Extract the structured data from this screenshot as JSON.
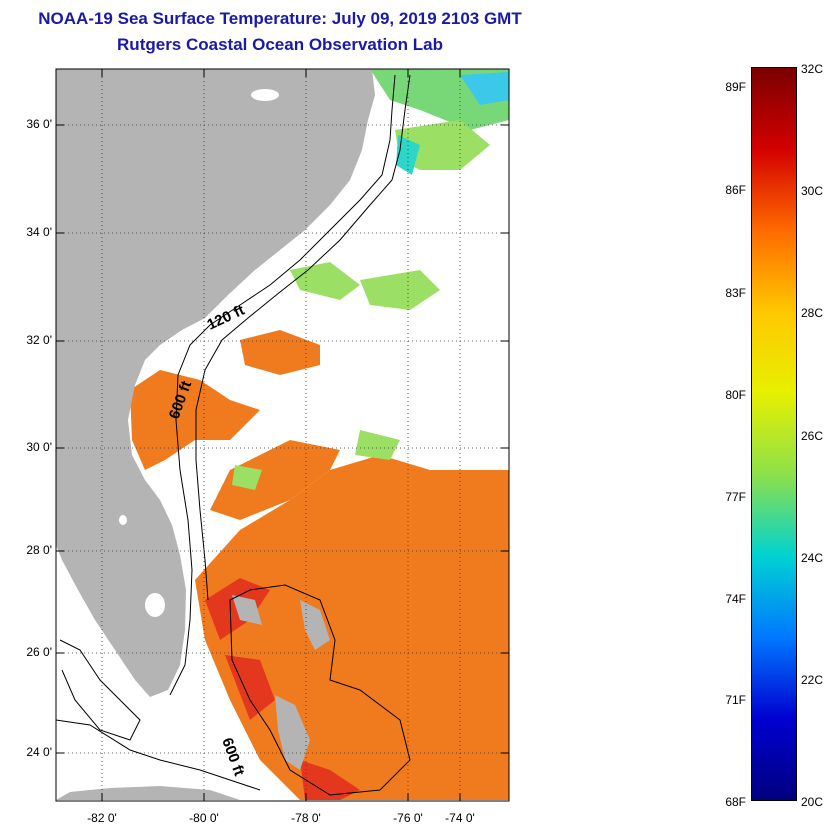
{
  "title": "NOAA-19 Sea Surface Temperature:  July 09, 2019 2103 GMT",
  "subtitle": "Rutgers Coastal Ocean Observation Lab",
  "lat_labels": [
    "36 0'",
    "34 0'",
    "32 0'",
    "30 0'",
    "28 0'",
    "26 0'",
    "24 0'"
  ],
  "lon_labels": [
    "-82 0'",
    "-80 0'",
    "-78 0'",
    "-76 0'",
    "-74 0'"
  ],
  "isobath_labels": [
    "120 ft",
    "600 ft",
    "600 ft"
  ],
  "colorbar": {
    "f_labels": [
      "89F",
      "86F",
      "83F",
      "80F",
      "77F",
      "74F",
      "71F",
      "68F"
    ],
    "c_labels": [
      "32C",
      "30C",
      "28C",
      "26C",
      "24C",
      "22C",
      "20C"
    ],
    "colors": [
      "#7a0000",
      "#d40000",
      "#ff6a00",
      "#ffc800",
      "#e6f000",
      "#8de04a",
      "#00d2d2",
      "#0078ff",
      "#0000d0",
      "#000080"
    ]
  },
  "palette": {
    "land": "#b4b4b4",
    "warm_water": "#f07a1e",
    "hot_water": "#e3381e",
    "cool_water": "#9be065",
    "title_color": "#1a1aa8"
  }
}
